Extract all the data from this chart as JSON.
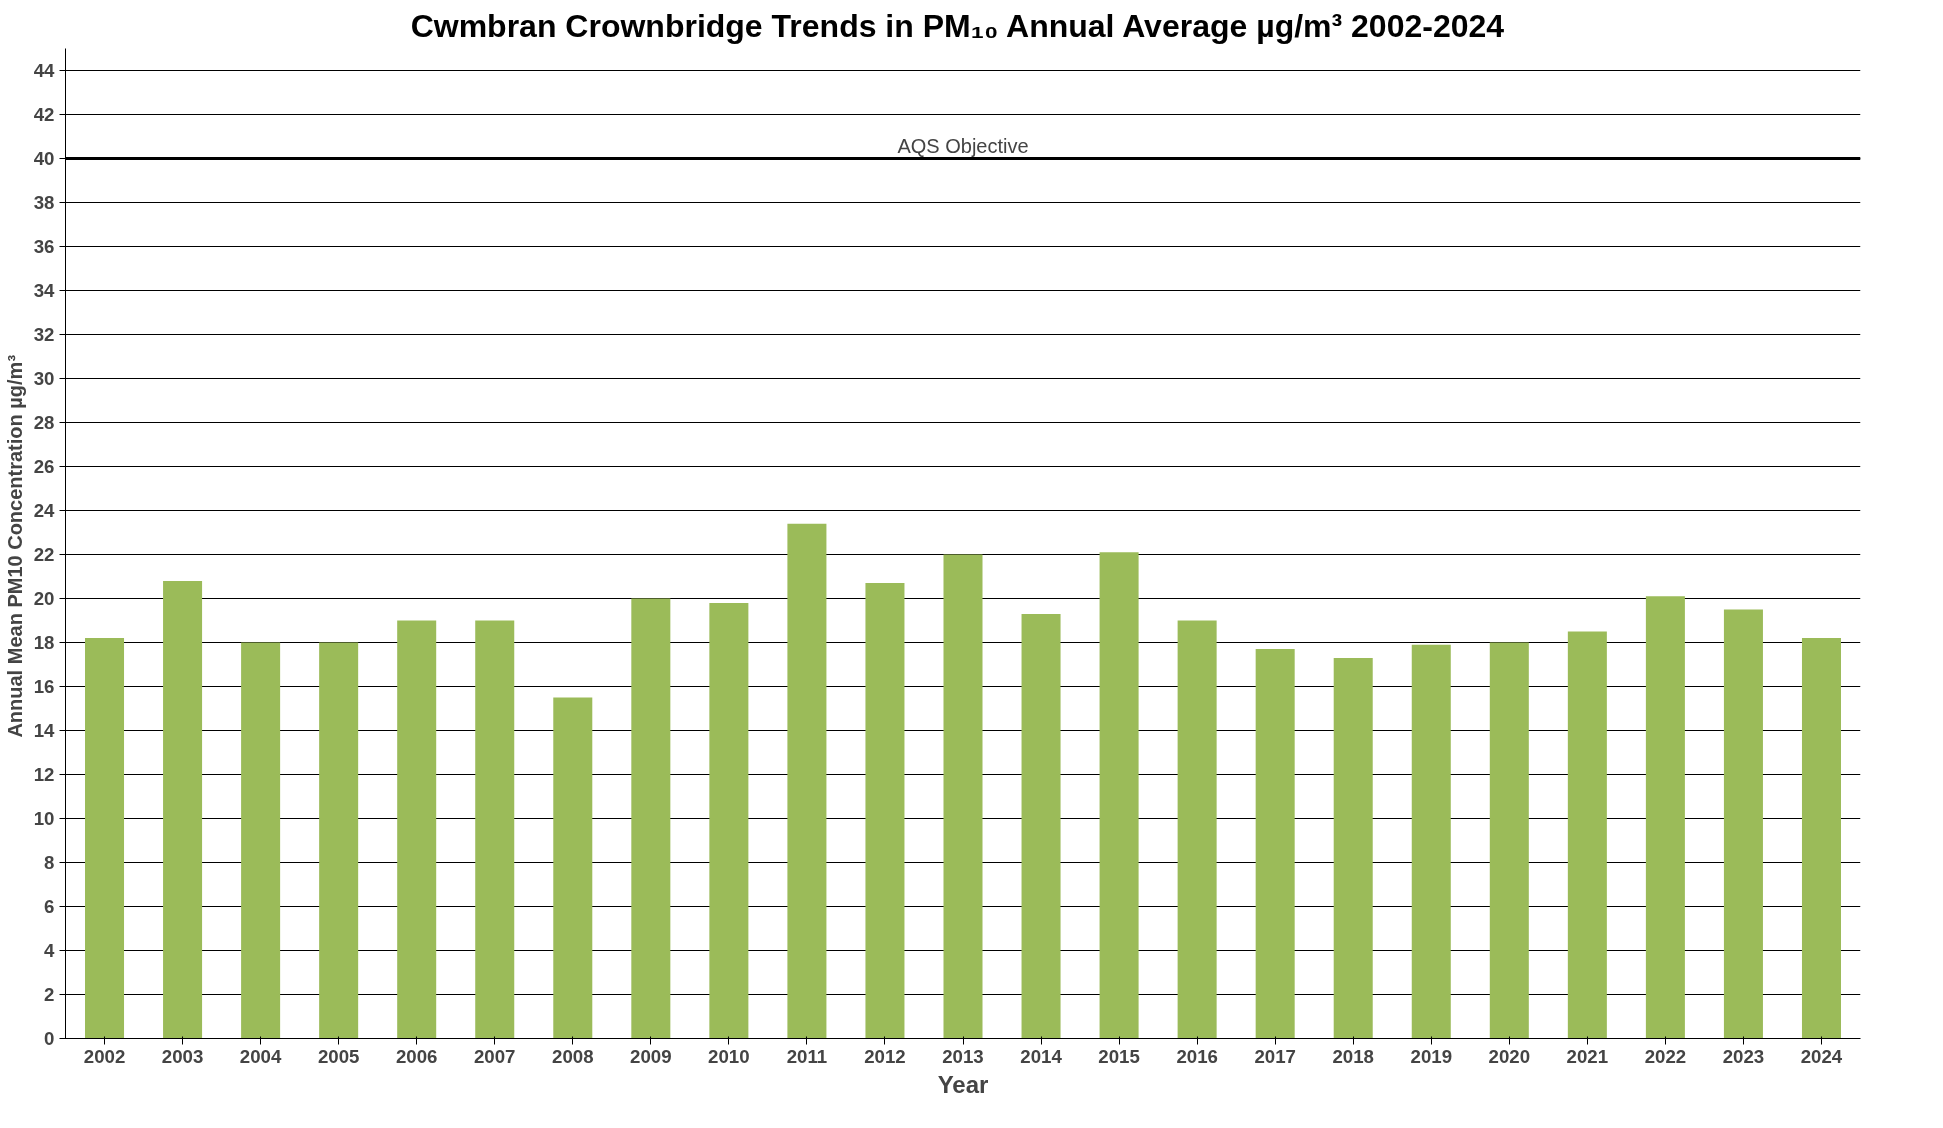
{
  "chart_data": {
    "type": "bar",
    "title": "Cwmbran Crownbridge Trends in PM₁₀ Annual Average µg/m³  2002-2024",
    "xlabel": "Year",
    "ylabel": "Annual Mean PM10 Concentration  µg/m³",
    "categories": [
      "2002",
      "2003",
      "2004",
      "2005",
      "2006",
      "2007",
      "2008",
      "2009",
      "2010",
      "2011",
      "2012",
      "2013",
      "2014",
      "2015",
      "2016",
      "2017",
      "2018",
      "2019",
      "2020",
      "2021",
      "2022",
      "2023",
      "2024"
    ],
    "series": [
      {
        "color": "#9bbb59",
        "values": [
          18.2,
          20.8,
          18.0,
          18.0,
          19.0,
          19.0,
          15.5,
          20.0,
          19.8,
          23.4,
          20.7,
          22.0,
          19.3,
          22.1,
          19.0,
          17.7,
          17.3,
          17.9,
          18.0,
          18.5,
          20.1,
          19.5,
          18.2
        ]
      }
    ],
    "ylim": [
      0,
      45
    ],
    "yticks": [
      0,
      2,
      4,
      6,
      8,
      10,
      12,
      14,
      16,
      18,
      20,
      22,
      24,
      26,
      28,
      30,
      32,
      34,
      36,
      38,
      40,
      42,
      44
    ],
    "grid": "y",
    "ref_lines": [
      {
        "axis": "y",
        "value": 40,
        "label": "AQS Objective",
        "color": "#000000"
      }
    ]
  }
}
